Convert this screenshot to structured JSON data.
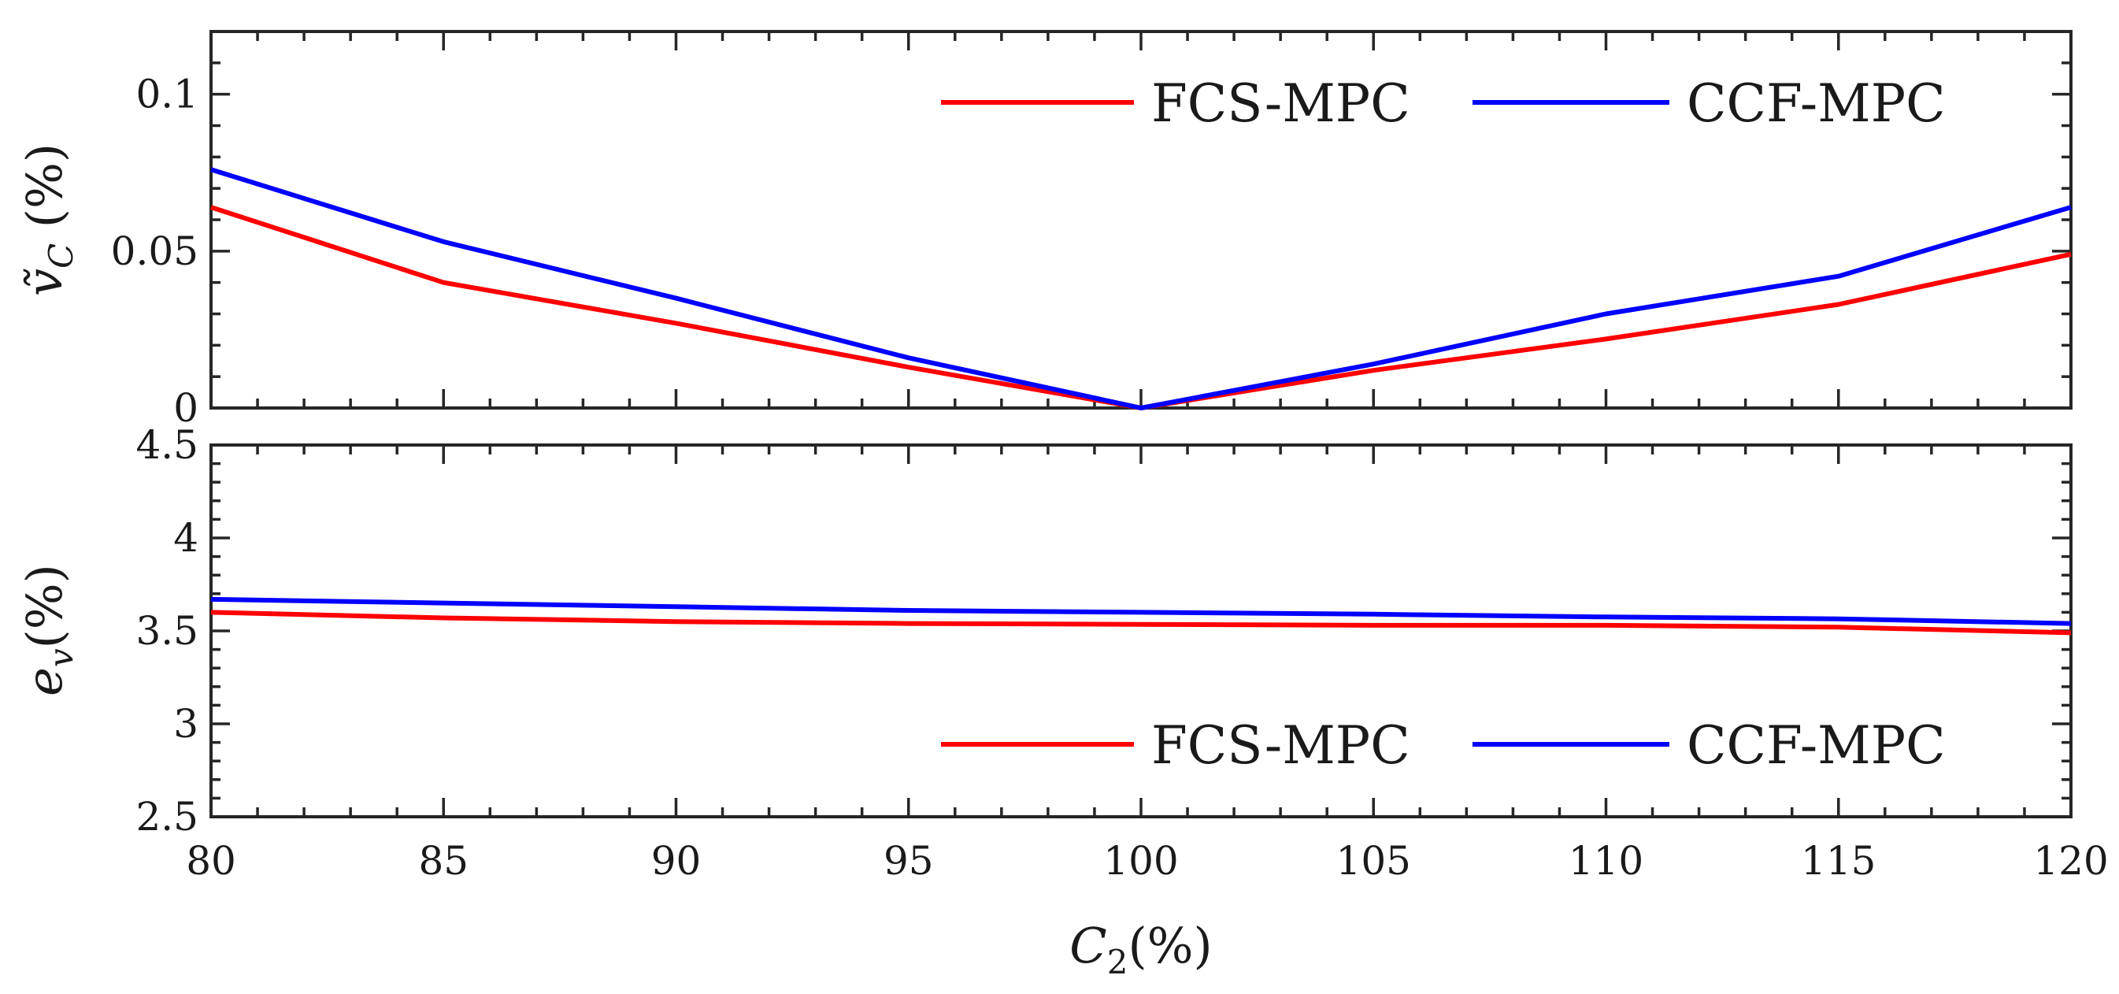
{
  "chart_data": [
    {
      "type": "line",
      "panel": "top",
      "title": "",
      "ylabel": "ṽ_C (%)",
      "ylabel_main": "ṽ",
      "ylabel_sub": "C",
      "ylabel_unit": "(%)",
      "xlabel": "",
      "xlim": [
        80,
        120
      ],
      "ylim": [
        0,
        0.12
      ],
      "yticks": [
        0,
        0.05,
        0.1
      ],
      "ytick_labels": [
        "0",
        "0.05",
        "0.1"
      ],
      "x": [
        80,
        85,
        90,
        95,
        100,
        105,
        110,
        115,
        120
      ],
      "series": [
        {
          "name": "FCS-MPC",
          "color": "#ff0000",
          "values": [
            0.064,
            0.04,
            0.027,
            0.013,
            0.0,
            0.012,
            0.022,
            0.033,
            0.049
          ]
        },
        {
          "name": "CCF-MPC",
          "color": "#0000ff",
          "values": [
            0.076,
            0.053,
            0.035,
            0.016,
            0.0,
            0.014,
            0.03,
            0.042,
            0.064
          ]
        }
      ],
      "legend_location": "top-right"
    },
    {
      "type": "line",
      "panel": "bottom",
      "title": "",
      "ylabel": "e_v(%)",
      "ylabel_main": "e",
      "ylabel_sub": "v",
      "ylabel_unit": "(%)",
      "xlabel": "C_2(%)",
      "xlabel_main": "C",
      "xlabel_sub": "2",
      "xlabel_unit": "(%)",
      "xlim": [
        80,
        120
      ],
      "ylim": [
        2.5,
        4.5
      ],
      "yticks": [
        2.5,
        3,
        3.5,
        4,
        4.5
      ],
      "ytick_labels": [
        "2.5",
        "3",
        "3.5",
        "4",
        "4.5"
      ],
      "xticks": [
        80,
        85,
        90,
        95,
        100,
        105,
        110,
        115,
        120
      ],
      "xtick_labels": [
        "80",
        "85",
        "90",
        "95",
        "100",
        "105",
        "110",
        "115",
        "120"
      ],
      "x": [
        80,
        85,
        90,
        95,
        100,
        105,
        110,
        115,
        120
      ],
      "series": [
        {
          "name": "FCS-MPC",
          "color": "#ff0000",
          "values": [
            3.6,
            3.57,
            3.55,
            3.54,
            3.535,
            3.53,
            3.53,
            3.52,
            3.49
          ]
        },
        {
          "name": "CCF-MPC",
          "color": "#0000ff",
          "values": [
            3.67,
            3.65,
            3.63,
            3.61,
            3.6,
            3.59,
            3.575,
            3.565,
            3.54
          ]
        }
      ],
      "legend_location": "bottom-right"
    }
  ]
}
